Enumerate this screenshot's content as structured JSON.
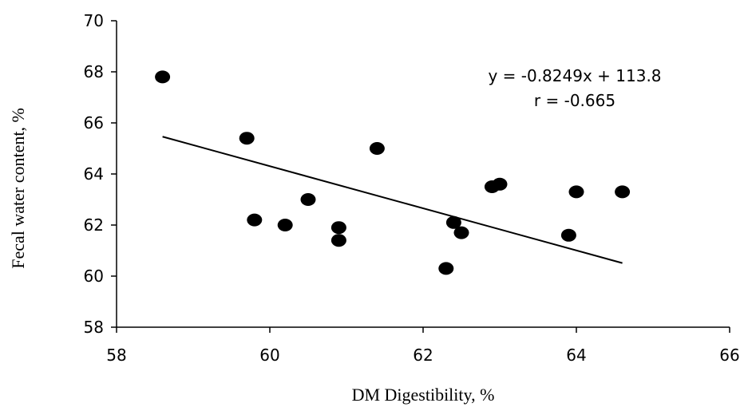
{
  "chart_data": {
    "type": "scatter",
    "xlabel": "DM Digestibility, %",
    "ylabel": "Fecal water content, %",
    "xlim": [
      58,
      66
    ],
    "ylim": [
      58,
      70
    ],
    "x_ticks": [
      "58",
      "60",
      "62",
      "64",
      "66"
    ],
    "y_ticks": [
      "58",
      "60",
      "62",
      "64",
      "66",
      "68",
      "70"
    ],
    "grid": false,
    "legend": "none",
    "marker_color": "#000000",
    "series": [
      {
        "points": [
          {
            "x": 58.6,
            "y": 67.8
          },
          {
            "x": 59.7,
            "y": 65.4
          },
          {
            "x": 59.8,
            "y": 62.2
          },
          {
            "x": 60.2,
            "y": 62.0
          },
          {
            "x": 60.5,
            "y": 63.0
          },
          {
            "x": 60.9,
            "y": 61.9
          },
          {
            "x": 60.9,
            "y": 61.4
          },
          {
            "x": 61.4,
            "y": 65.0
          },
          {
            "x": 62.3,
            "y": 60.3
          },
          {
            "x": 62.4,
            "y": 62.1
          },
          {
            "x": 62.5,
            "y": 61.7
          },
          {
            "x": 62.9,
            "y": 63.5
          },
          {
            "x": 63.0,
            "y": 63.6
          },
          {
            "x": 63.9,
            "y": 61.6
          },
          {
            "x": 64.0,
            "y": 63.3
          },
          {
            "x": 64.6,
            "y": 63.3
          }
        ]
      }
    ],
    "trendline": {
      "slope": -0.8249,
      "intercept": 113.8,
      "x_range": [
        58.6,
        64.6
      ]
    },
    "annotations": {
      "equation": "y = -0.8249x + 113.8",
      "r_value": "r = -0.665"
    }
  }
}
